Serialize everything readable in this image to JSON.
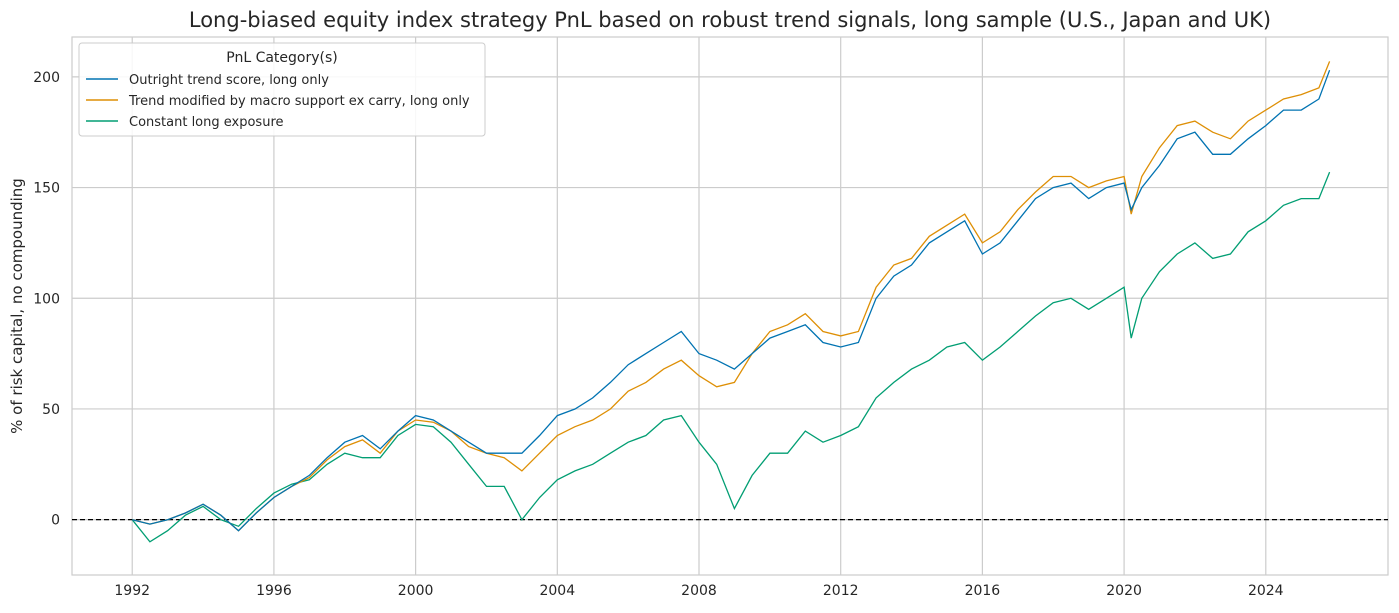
{
  "chart_data": {
    "type": "line",
    "title": "Long-biased equity index strategy PnL based on robust trend signals, long sample (U.S., Japan and UK)",
    "xlabel": "",
    "ylabel": "% of risk capital, no compounding",
    "xlim": [
      1990.3,
      2027.45
    ],
    "ylim": [
      -25,
      218
    ],
    "xticks": [
      1992,
      1996,
      2000,
      2004,
      2008,
      2012,
      2016,
      2020,
      2024
    ],
    "yticks": [
      0,
      50,
      100,
      150,
      200
    ],
    "grid": true,
    "zero_line": {
      "y": 0,
      "style": "dashed",
      "color": "#000000"
    },
    "legend": {
      "title": "PnL Category(s)",
      "placement": "top-left"
    },
    "x": [
      1992,
      1992.5,
      1993,
      1993.5,
      1994,
      1994.5,
      1995,
      1995.5,
      1996,
      1996.5,
      1997,
      1997.5,
      1998,
      1998.5,
      1999,
      1999.5,
      2000,
      2000.5,
      2001,
      2001.5,
      2002,
      2002.5,
      2003,
      2003.5,
      2004,
      2004.5,
      2005,
      2005.5,
      2006,
      2006.5,
      2007,
      2007.5,
      2008,
      2008.5,
      2009,
      2009.5,
      2010,
      2010.5,
      2011,
      2011.5,
      2012,
      2012.5,
      2013,
      2013.5,
      2014,
      2014.5,
      2015,
      2015.5,
      2016,
      2016.5,
      2017,
      2017.5,
      2018,
      2018.5,
      2019,
      2019.5,
      2020,
      2020.2,
      2020.5,
      2021,
      2021.5,
      2022,
      2022.5,
      2023,
      2023.5,
      2024,
      2024.5,
      2025,
      2025.5,
      2025.8
    ],
    "series": [
      {
        "name": "Outright trend score, long only",
        "color": "#0173b2",
        "values": [
          0,
          -2,
          0,
          3,
          7,
          2,
          -5,
          3,
          10,
          15,
          20,
          28,
          35,
          38,
          32,
          40,
          47,
          45,
          40,
          35,
          30,
          30,
          30,
          38,
          47,
          50,
          55,
          62,
          70,
          75,
          80,
          85,
          75,
          72,
          68,
          75,
          82,
          85,
          88,
          80,
          78,
          80,
          100,
          110,
          115,
          125,
          130,
          135,
          120,
          125,
          135,
          145,
          150,
          152,
          145,
          150,
          152,
          140,
          150,
          160,
          172,
          175,
          165,
          165,
          172,
          178,
          185,
          185,
          190,
          203
        ]
      },
      {
        "name": "Trend modified by macro support ex carry, long only",
        "color": "#de8f05",
        "values": [
          0,
          -2,
          0,
          3,
          7,
          2,
          -5,
          3,
          10,
          15,
          19,
          27,
          33,
          36,
          30,
          40,
          45,
          44,
          40,
          33,
          30,
          28,
          22,
          30,
          38,
          42,
          45,
          50,
          58,
          62,
          68,
          72,
          65,
          60,
          62,
          75,
          85,
          88,
          93,
          85,
          83,
          85,
          105,
          115,
          118,
          128,
          133,
          138,
          125,
          130,
          140,
          148,
          155,
          155,
          150,
          153,
          155,
          138,
          155,
          168,
          178,
          180,
          175,
          172,
          180,
          185,
          190,
          192,
          195,
          207
        ]
      },
      {
        "name": "Constant long exposure",
        "color": "#029e73",
        "values": [
          0,
          -10,
          -5,
          2,
          6,
          0,
          -3,
          5,
          12,
          16,
          18,
          25,
          30,
          28,
          28,
          38,
          43,
          42,
          35,
          25,
          15,
          15,
          0,
          10,
          18,
          22,
          25,
          30,
          35,
          38,
          45,
          47,
          35,
          25,
          5,
          20,
          30,
          30,
          40,
          35,
          38,
          42,
          55,
          62,
          68,
          72,
          78,
          80,
          72,
          78,
          85,
          92,
          98,
          100,
          95,
          100,
          105,
          82,
          100,
          112,
          120,
          125,
          118,
          120,
          130,
          135,
          142,
          145,
          145,
          157
        ]
      }
    ]
  }
}
